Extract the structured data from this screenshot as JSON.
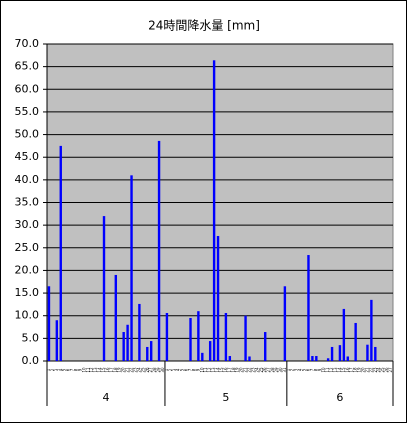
{
  "chart_data": {
    "type": "bar",
    "title": "24時間降水量 [mm]",
    "categories": [
      "1",
      "2",
      "3",
      "4",
      "5",
      "6",
      "7",
      "8",
      "9",
      "10",
      "11",
      "12",
      "13",
      "14",
      "15",
      "16",
      "17",
      "18",
      "19",
      "20",
      "21",
      "22",
      "23",
      "24",
      "25",
      "26",
      "27",
      "28",
      "29",
      "30",
      "1",
      "2",
      "3",
      "4",
      "5",
      "6",
      "7",
      "8",
      "9",
      "10",
      "11",
      "12",
      "13",
      "14",
      "15",
      "16",
      "17",
      "18",
      "19",
      "20",
      "21",
      "22",
      "23",
      "24",
      "25",
      "26",
      "27",
      "28",
      "29",
      "30",
      "31",
      "1",
      "2",
      "3",
      "4",
      "5",
      "6",
      "7",
      "8",
      "9",
      "10",
      "11",
      "12",
      "13",
      "14",
      "15",
      "16",
      "17",
      "18",
      "19",
      "20",
      "21",
      "22",
      "23",
      "24",
      "25",
      "26",
      "27"
    ],
    "groups": [
      {
        "label": "4",
        "span": 30
      },
      {
        "label": "5",
        "span": 31
      },
      {
        "label": "6",
        "span": 27
      }
    ],
    "values": [
      16.5,
      0,
      9.0,
      47.5,
      0,
      0,
      0,
      0,
      0,
      0,
      0,
      0,
      0,
      0,
      32.0,
      0,
      0,
      19.0,
      0,
      6.4,
      8.0,
      41.0,
      0,
      12.6,
      0,
      3.1,
      4.4,
      0,
      48.6,
      0,
      10.6,
      0,
      0,
      0,
      0,
      0,
      9.5,
      0,
      11.0,
      1.8,
      0,
      4.4,
      66.4,
      27.6,
      0,
      10.6,
      1.1,
      0,
      0,
      0,
      10.0,
      1.0,
      0,
      0,
      0,
      6.4,
      0,
      0,
      0,
      0,
      16.5,
      0,
      0,
      0,
      0,
      0,
      23.4,
      1.1,
      1.1,
      0,
      0,
      0.6,
      3.1,
      0,
      3.5,
      11.5,
      1.0,
      0,
      8.4,
      0,
      0,
      3.6,
      13.5,
      3.1,
      0,
      0,
      0,
      0
    ],
    "color": "#0000ff",
    "ylim": [
      0,
      70
    ],
    "yticks": [
      {
        "value": 0,
        "label": "0.0"
      },
      {
        "value": 5,
        "label": "5.0"
      },
      {
        "value": 10,
        "label": "10.0"
      },
      {
        "value": 15,
        "label": "15.0"
      },
      {
        "value": 20,
        "label": "20.0"
      },
      {
        "value": 25,
        "label": "25.0"
      },
      {
        "value": 30,
        "label": "30.0"
      },
      {
        "value": 35,
        "label": "35.0"
      },
      {
        "value": 40,
        "label": "40.0"
      },
      {
        "value": 45,
        "label": "45.0"
      },
      {
        "value": 50,
        "label": "50.0"
      },
      {
        "value": 55,
        "label": "55.0"
      },
      {
        "value": 60,
        "label": "60.0"
      },
      {
        "value": 65,
        "label": "65.0"
      },
      {
        "value": 70,
        "label": "70.0"
      }
    ],
    "grid": true
  }
}
